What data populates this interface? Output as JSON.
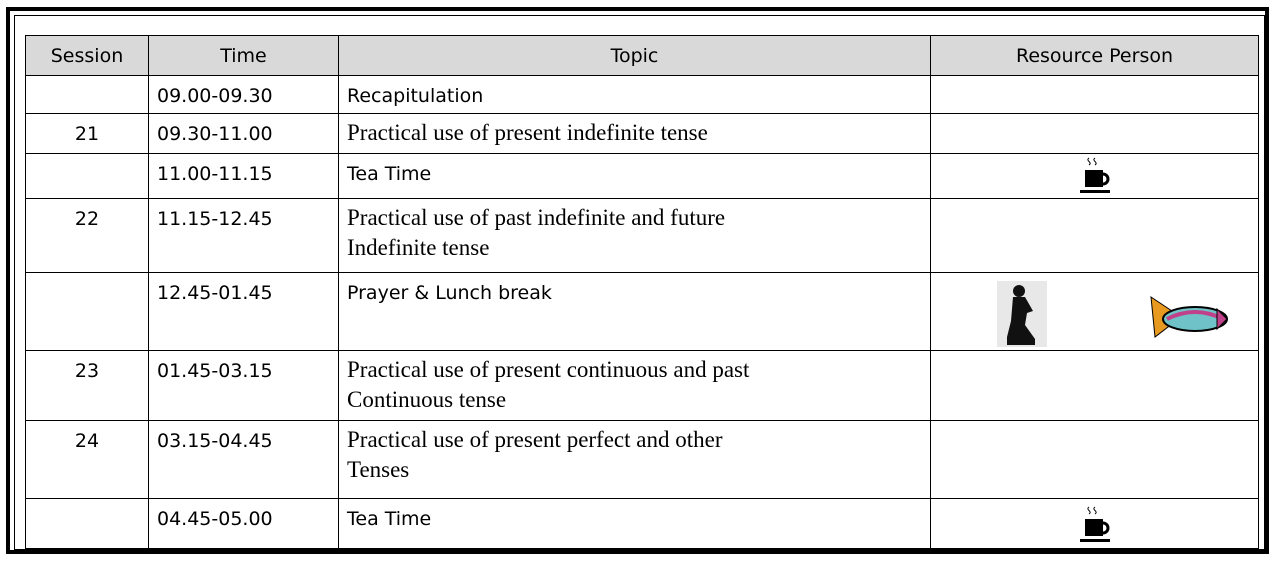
{
  "table": {
    "header": [
      "Session",
      "Time",
      "Topic",
      "Resource Person"
    ],
    "rows": [
      {
        "time": "09.00-09.30",
        "topic": "Recapitulation"
      },
      {
        "session": "21",
        "time": "09.30-11.00",
        "topic": "Practical use of present indefinite tense"
      },
      {
        "time": "11.00-11.15",
        "topic": "Tea Time"
      },
      {
        "session": "22",
        "time": "11.15-12.45",
        "topic": "Practical use of past indefinite and future\nIndefinite tense"
      },
      {
        "time": "12.45-01.45",
        "topic": "Prayer & Lunch break"
      },
      {
        "session": "23",
        "time": "01.45-03.15",
        "topic": "Practical use of present continuous and past\nContinuous tense"
      },
      {
        "session": "24",
        "time": "03.15-04.45",
        "topic": "Practical use of present perfect and other\nTenses"
      },
      {
        "time": "04.45-05.00",
        "topic": "Tea Time"
      }
    ]
  }
}
